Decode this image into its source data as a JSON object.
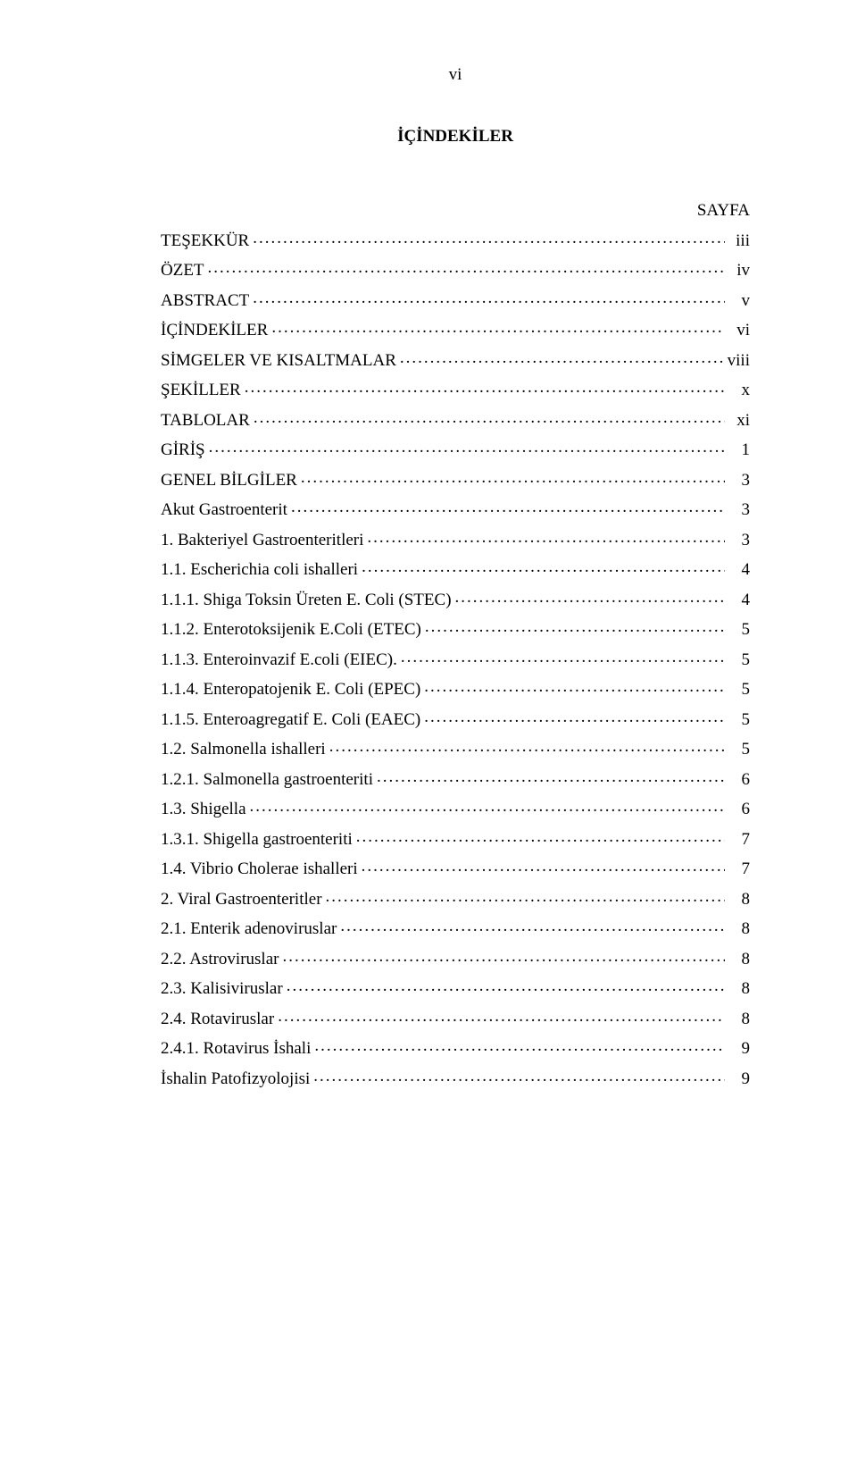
{
  "page_number_roman": "vi",
  "title": "İÇİNDEKİLER",
  "column_label": "SAYFA",
  "leader": "...........................................................................................................................................",
  "toc": [
    {
      "label": "TEŞEKKÜR",
      "page": "iii",
      "indent": 1
    },
    {
      "label": "ÖZET",
      "page": "iv",
      "indent": 1
    },
    {
      "label": "ABSTRACT",
      "page": "v",
      "indent": 1
    },
    {
      "label": "İÇİNDEKİLER",
      "page": "vi",
      "indent": 1
    },
    {
      "label": "SİMGELER VE KISALTMALAR",
      "page": "viii",
      "indent": 1
    },
    {
      "label": "ŞEKİLLER",
      "page": "x",
      "indent": 1
    },
    {
      "label": "TABLOLAR",
      "page": "xi",
      "indent": 1
    },
    {
      "label": "GİRİŞ",
      "page": "1",
      "indent": 1
    },
    {
      "label": "GENEL BİLGİLER",
      "page": "3",
      "indent": 1
    },
    {
      "label": "Akut Gastroenterit",
      "page": "3",
      "indent": 1
    },
    {
      "label": "1. Bakteriyel Gastroenteritleri",
      "page": "3",
      "indent": 1
    },
    {
      "label": "1.1. Escherichia coli ishalleri",
      "page": "4",
      "indent": 2
    },
    {
      "label": "1.1.1. Shiga Toksin Üreten E. Coli (STEC)",
      "page": "4",
      "indent": 3
    },
    {
      "label": "1.1.2. Enterotoksijenik E.Coli (ETEC)",
      "page": "5",
      "indent": 3
    },
    {
      "label": "1.1.3. Enteroinvazif E.coli (EIEC). ",
      "page": "5",
      "indent": 3
    },
    {
      "label": "1.1.4. Enteropatojenik E. Coli (EPEC)",
      "page": "5",
      "indent": 3
    },
    {
      "label": "1.1.5. Enteroagregatif E. Coli (EAEC)",
      "page": "5",
      "indent": 3
    },
    {
      "label": "1.2. Salmonella ishalleri",
      "page": "5",
      "indent": 2
    },
    {
      "label": "1.2.1. Salmonella gastroenteriti",
      "page": "6",
      "indent": 3
    },
    {
      "label": "1.3. Shigella",
      "page": "6",
      "indent": 2
    },
    {
      "label": "1.3.1. Shigella gastroenteriti",
      "page": "7",
      "indent": 3
    },
    {
      "label": "1.4. Vibrio Cholerae ishalleri",
      "page": "7",
      "indent": 2
    },
    {
      "label": "2. Viral Gastroenteritler",
      "page": "8",
      "indent": 1
    },
    {
      "label": "2.1. Enterik adenoviruslar",
      "page": "8",
      "indent": 2
    },
    {
      "label": "2.2. Astroviruslar",
      "page": "8",
      "indent": 2
    },
    {
      "label": "2.3. Kalisiviruslar",
      "page": "8",
      "indent": 2
    },
    {
      "label": "2.4. Rotaviruslar",
      "page": "8",
      "indent": 2
    },
    {
      "label": "2.4.1. Rotavirus İshali",
      "page": "9",
      "indent": 3
    },
    {
      "label": "İshalin Patofizyolojisi",
      "page": "9",
      "indent": 1
    }
  ]
}
